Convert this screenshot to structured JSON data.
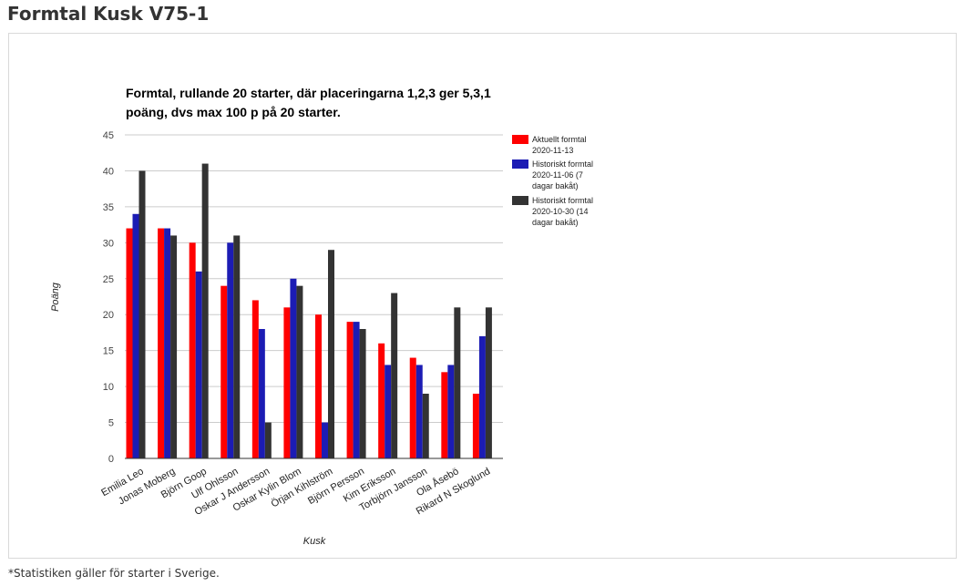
{
  "page": {
    "title": "Formtal Kusk V75-1",
    "footnote": "*Statistiken gäller för starter i Sverige."
  },
  "chart_data": {
    "type": "bar",
    "title_lines": [
      "Formtal, rullande 20 starter, där placeringarna 1,2,3 ger 5,3,1",
      "poäng, dvs max 100 p på 20 starter."
    ],
    "xlabel": "Kusk",
    "ylabel": "Poäng",
    "ylim": [
      0,
      45
    ],
    "yticks": [
      0,
      5,
      10,
      15,
      20,
      25,
      30,
      35,
      40,
      45
    ],
    "grid": true,
    "legend_position": "right",
    "categories": [
      "Emilia Leo",
      "Jonas Moberg",
      "Björn Goop",
      "Ulf Ohlsson",
      "Oskar J Andersson",
      "Oskar Kylin Blom",
      "Örjan Kihlström",
      "Björn Persson",
      "Kim Eriksson",
      "Torbjörn Jansson",
      "Ola Åsebö",
      "Rikard N Skoglund"
    ],
    "series": [
      {
        "name_lines": [
          "Aktuellt formtal",
          "2020-11-13"
        ],
        "color": "#ff0000",
        "values": [
          32,
          32,
          30,
          24,
          22,
          21,
          20,
          19,
          16,
          14,
          12,
          9
        ]
      },
      {
        "name_lines": [
          "Historiskt formtal",
          "2020-11-06 (7",
          "dagar bakåt)"
        ],
        "color": "#1c1cb4",
        "values": [
          34,
          32,
          26,
          30,
          18,
          25,
          5,
          19,
          13,
          13,
          13,
          17
        ]
      },
      {
        "name_lines": [
          "Historiskt formtal",
          "2020-10-30 (14",
          "dagar bakåt)"
        ],
        "color": "#333333",
        "values": [
          40,
          31,
          41,
          31,
          5,
          24,
          29,
          18,
          23,
          9,
          21,
          21
        ]
      }
    ]
  }
}
